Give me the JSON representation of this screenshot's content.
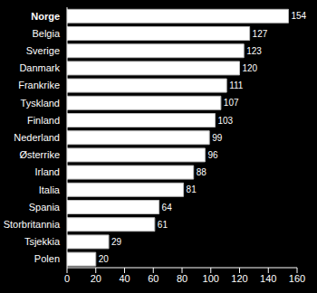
{
  "chart_data": {
    "type": "bar",
    "orientation": "horizontal",
    "categories": [
      "Norge",
      "Belgia",
      "Sverige",
      "Danmark",
      "Frankrike",
      "Tyskland",
      "Finland",
      "Nederland",
      "Østerrike",
      "Irland",
      "Italia",
      "Spania",
      "Storbritannia",
      "Tsjekkia",
      "Polen"
    ],
    "values": [
      154,
      127,
      123,
      120,
      111,
      107,
      103,
      99,
      96,
      88,
      81,
      64,
      61,
      29,
      20
    ],
    "color": "#ffffff",
    "xlim": [
      0,
      160
    ],
    "xticks": [
      0,
      20,
      40,
      60,
      80,
      100,
      120,
      140,
      160
    ],
    "grid": false,
    "data_labels": true
  }
}
